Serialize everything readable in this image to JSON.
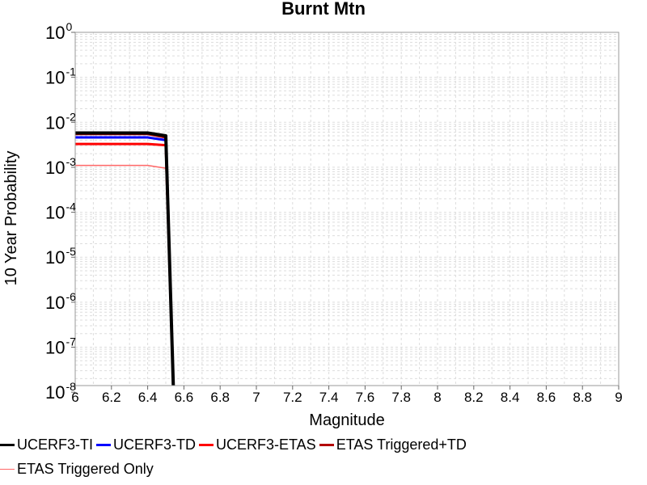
{
  "chart_data": {
    "type": "line",
    "title": "Burnt Mtn",
    "xlabel": "Magnitude",
    "ylabel": "10 Year Probability",
    "xlim": [
      6,
      9
    ],
    "ylim": [
      1.4e-08,
      1
    ],
    "yscale": "log",
    "grid": true,
    "legend_position": "bottom",
    "x_ticks": [
      "6",
      "6.2",
      "6.4",
      "6.6",
      "6.8",
      "7",
      "7.2",
      "7.4",
      "7.6",
      "7.8",
      "8",
      "8.2",
      "8.4",
      "8.6",
      "8.8",
      "9"
    ],
    "y_ticks": [
      {
        "base": "10",
        "exp": "0"
      },
      {
        "base": "10",
        "exp": "-1"
      },
      {
        "base": "10",
        "exp": "-2"
      },
      {
        "base": "10",
        "exp": "-3"
      },
      {
        "base": "10",
        "exp": "-4"
      },
      {
        "base": "10",
        "exp": "-5"
      },
      {
        "base": "10",
        "exp": "-6"
      },
      {
        "base": "10",
        "exp": "-7"
      },
      {
        "base": "10",
        "exp": "-8"
      }
    ],
    "series": [
      {
        "name": "UCERF3-TI",
        "color": "#000000",
        "width": 4,
        "x": [
          6.0,
          6.4,
          6.5,
          6.55
        ],
        "y": [
          0.0058,
          0.0058,
          0.005,
          1e-09
        ]
      },
      {
        "name": "UCERF3-TD",
        "color": "#0000ff",
        "width": 3,
        "x": [
          6.0,
          6.4,
          6.5,
          6.55
        ],
        "y": [
          0.0046,
          0.0046,
          0.004,
          1e-09
        ]
      },
      {
        "name": "UCERF3-ETAS",
        "color": "#ff0000",
        "width": 3,
        "x": [
          6.0,
          6.4,
          6.5,
          6.55
        ],
        "y": [
          0.0033,
          0.0033,
          0.0031,
          1e-09
        ]
      },
      {
        "name": "ETAS Triggered+TD",
        "color": "#b30000",
        "width": 3,
        "x": [
          6.0,
          6.4,
          6.5,
          6.55
        ],
        "y": [
          0.0055,
          0.0055,
          0.0046,
          1e-09
        ]
      },
      {
        "name": "ETAS Triggered Only",
        "color": "#ff6666",
        "width": 1.5,
        "x": [
          6.0,
          6.4,
          6.5,
          6.55
        ],
        "y": [
          0.0011,
          0.0011,
          0.00095,
          1e-09
        ]
      }
    ]
  }
}
